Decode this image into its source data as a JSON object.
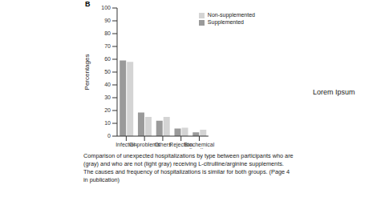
{
  "chart_data": {
    "type": "bar",
    "panel_label": "B",
    "y_label": "Percentages",
    "categories": [
      "Infection",
      "GI-problems",
      "Others",
      "Rejection",
      "Biochemical alterations"
    ],
    "series": [
      {
        "name": "Supplemented",
        "color": "#9a9a9a",
        "values": [
          59,
          18.5,
          12,
          6,
          3
        ]
      },
      {
        "name": "Non-supplemented",
        "color": "#d4d4d4",
        "values": [
          58,
          15,
          15,
          6.5,
          5
        ]
      }
    ],
    "ylim": [
      0,
      100
    ],
    "yticks": [
      0,
      10,
      20,
      30,
      40,
      50,
      60,
      70,
      80,
      90,
      100
    ],
    "grid": false,
    "legend": "top-right",
    "caption": [
      "Comparison of unexpected hospitalizations by type between participants who are",
      "(gray) and who are not (light gray) receiving L-citrulline/arginine supplements.",
      "The causes and frequency of hospitalizations is similar for both groups. (Page 4",
      "in publication)"
    ],
    "side_text": "Lorem Ipsum"
  }
}
